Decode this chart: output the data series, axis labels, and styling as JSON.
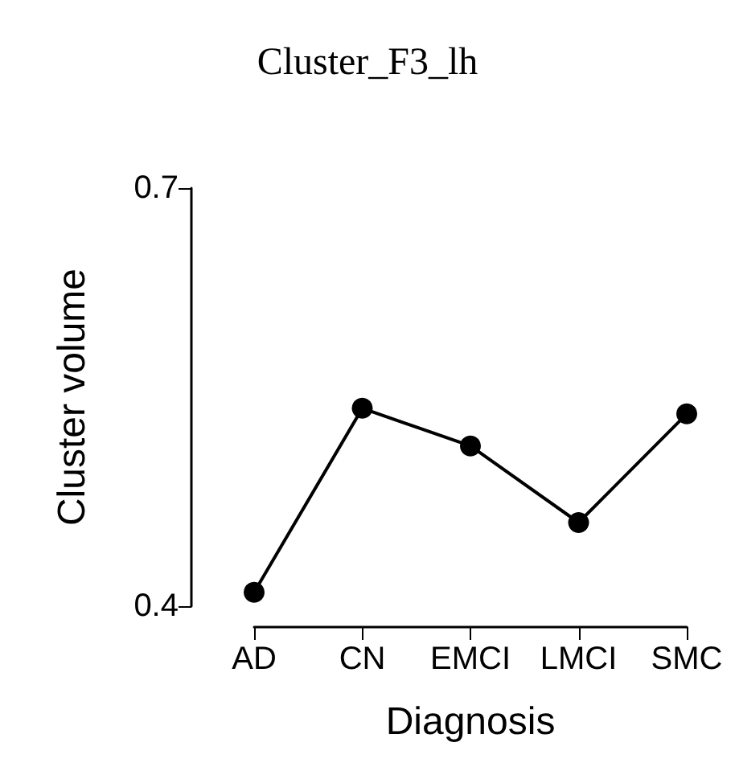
{
  "chart_data": {
    "type": "line",
    "title": "Cluster_F3_lh",
    "xlabel": "Diagnosis",
    "ylabel": "Cluster volume",
    "categories": [
      "AD",
      "CN",
      "EMCI",
      "LMCI",
      "SMC"
    ],
    "series": [
      {
        "color": "#000000",
        "values": [
          0.41,
          0.542,
          0.515,
          0.46,
          0.538
        ]
      }
    ],
    "ylim": [
      0.4,
      0.7
    ],
    "yticks": [
      0.4,
      0.7
    ],
    "marker": "circle",
    "line_style": "solid"
  }
}
